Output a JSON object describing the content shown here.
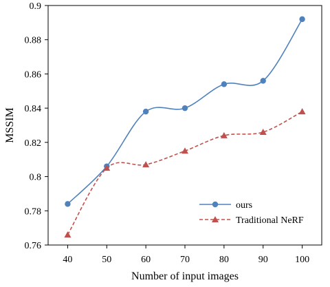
{
  "chart_data": {
    "type": "line",
    "xlabel": "Number of input images",
    "ylabel": "MSSIM",
    "x": [
      40,
      50,
      60,
      70,
      80,
      90,
      100
    ],
    "xlim": [
      35,
      105
    ],
    "ylim": [
      0.76,
      0.9
    ],
    "y_ticks": [
      0.76,
      0.78,
      0.8,
      0.82,
      0.84,
      0.86,
      0.88,
      0.9
    ],
    "y_tick_labels": [
      "0.76",
      "0.78",
      "0.8",
      "0.82",
      "0.84",
      "0.86",
      "0.88",
      "0.9"
    ],
    "x_tick_labels": [
      "40",
      "50",
      "60",
      "70",
      "80",
      "90",
      "100"
    ],
    "grid": false,
    "legend_position": "bottom-right",
    "series": [
      {
        "name": "ours",
        "values": [
          0.784,
          0.806,
          0.838,
          0.84,
          0.854,
          0.856,
          0.892
        ],
        "color": "#4f81bd",
        "line_style": "solid",
        "marker": "circle"
      },
      {
        "name": "Traditional NeRF",
        "values": [
          0.766,
          0.805,
          0.807,
          0.815,
          0.824,
          0.826,
          0.838
        ],
        "color": "#c0504d",
        "line_style": "dashed",
        "marker": "triangle"
      }
    ]
  }
}
